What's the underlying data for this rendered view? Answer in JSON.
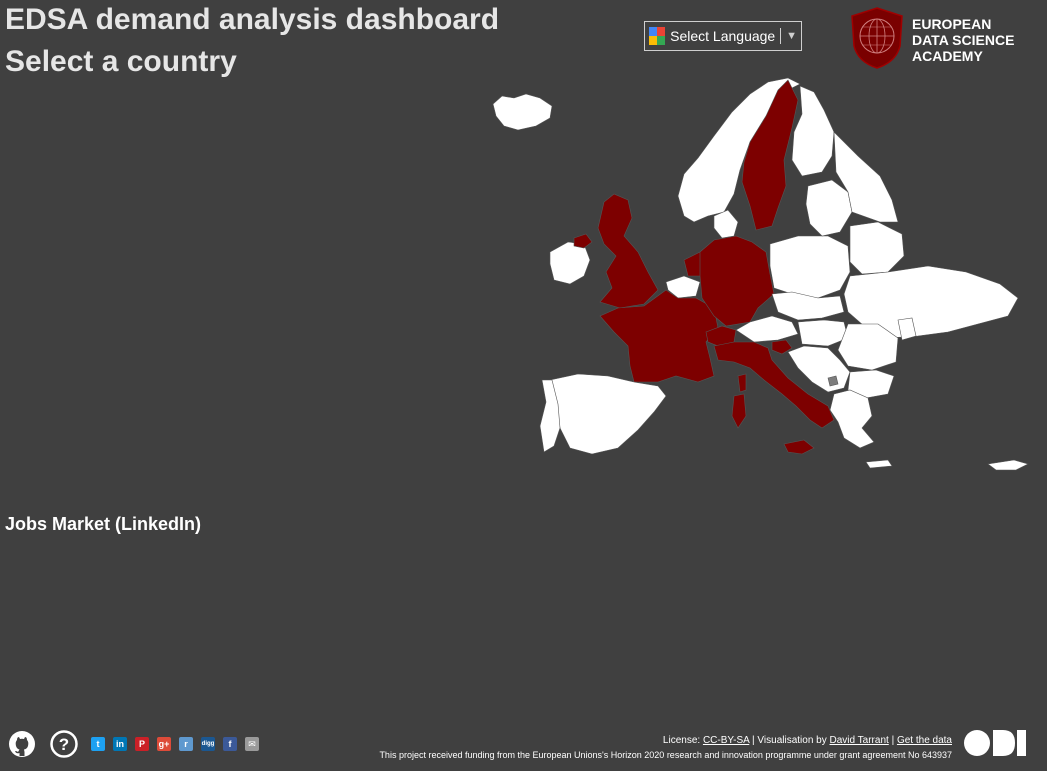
{
  "header": {
    "title": "EDSA demand analysis dashboard",
    "subtitle": "Select a country"
  },
  "language_selector": {
    "label": "Select Language",
    "arrow": "▼",
    "icon": "google-translate-icon"
  },
  "logo": {
    "line1": "EUROPEAN",
    "line2": "DATA SCIENCE",
    "line3": "ACADEMY",
    "color": "#7a0000"
  },
  "map": {
    "highlight_color": "#7d0000",
    "default_color": "#ffffff",
    "highlighted_countries": [
      "Sweden",
      "United Kingdom",
      "Ireland (Northern)",
      "France",
      "Germany",
      "Netherlands",
      "Switzerland",
      "Italy",
      "Slovenia"
    ]
  },
  "jobs_market": {
    "heading": "Jobs Market (LinkedIn)"
  },
  "footer": {
    "license_prefix": "License: ",
    "license_link": "CC-BY-SA",
    "sep1": " | Visualisation by ",
    "author_link": "David Tarrant",
    "sep2": " | ",
    "data_link": "Get the data",
    "funding": "This project received funding from the European Unions's Horizon 2020 research and innovation programme under grant agreement No 643937",
    "share_icons": [
      {
        "name": "twitter-icon",
        "glyph": "t",
        "color": "#1da1f2"
      },
      {
        "name": "linkedin-icon",
        "glyph": "in",
        "color": "#0077b5"
      },
      {
        "name": "pinterest-icon",
        "glyph": "P",
        "color": "#cb2027"
      },
      {
        "name": "google-plus-icon",
        "glyph": "g+",
        "color": "#dd4b39"
      },
      {
        "name": "reddit-icon",
        "glyph": "r",
        "color": "#5f99cf"
      },
      {
        "name": "digg-icon",
        "glyph": "digg",
        "color": "#1b5791"
      },
      {
        "name": "facebook-icon",
        "glyph": "f",
        "color": "#3b5998"
      },
      {
        "name": "email-icon",
        "glyph": "✉",
        "color": "#9a9a9a"
      }
    ]
  }
}
